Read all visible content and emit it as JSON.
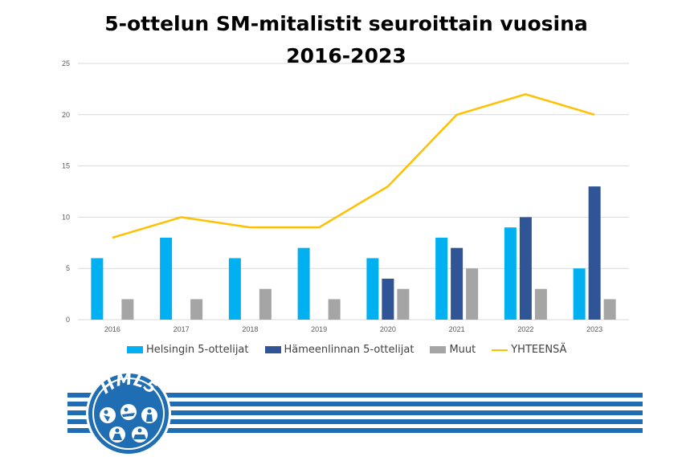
{
  "chart_data": {
    "type": "bar",
    "title_lines": [
      "5-ottelun SM-mitalistit seuroittain vuosina",
      "2016-2023"
    ],
    "categories": [
      "2016",
      "2017",
      "2018",
      "2019",
      "2020",
      "2021",
      "2022",
      "2023"
    ],
    "series": [
      {
        "name": "Helsingin 5-ottelijat",
        "type": "bar",
        "color": "#00b0f0",
        "values": [
          6,
          8,
          6,
          7,
          6,
          8,
          9,
          5
        ]
      },
      {
        "name": "Hämeenlinnan 5-ottelijat",
        "type": "bar",
        "color": "#2f5597",
        "values": [
          0,
          0,
          0,
          0,
          4,
          7,
          10,
          13
        ]
      },
      {
        "name": "Muut",
        "type": "bar",
        "color": "#a5a5a5",
        "values": [
          2,
          2,
          3,
          2,
          3,
          5,
          3,
          2
        ]
      },
      {
        "name": "YHTEENSÄ",
        "type": "line",
        "color": "#ffc000",
        "values": [
          8,
          10,
          9,
          9,
          13,
          20,
          22,
          20
        ]
      }
    ],
    "yticks": [
      "0",
      "5",
      "10",
      "15",
      "20",
      "25"
    ],
    "ylim": [
      0,
      25
    ],
    "grid": true,
    "legend_position": "bottom"
  },
  "logo": {
    "text": "HML5",
    "color": "#1f6db3"
  }
}
